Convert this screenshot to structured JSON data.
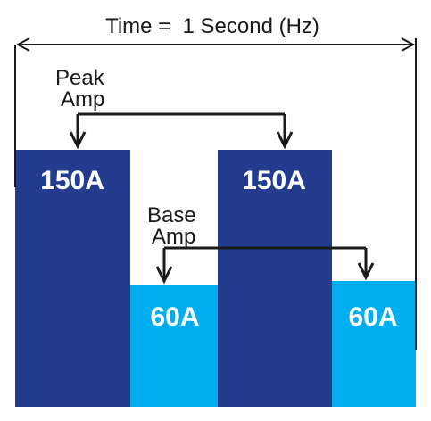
{
  "title": "Time =  1 Second (Hz)",
  "peak_label_line1": "Peak",
  "peak_label_line2": "Amp",
  "base_label_line1": "Base",
  "base_label_line2": "Amp",
  "bars": [
    {
      "label": "150A",
      "level": "peak"
    },
    {
      "label": "60A",
      "level": "base"
    },
    {
      "label": "150A",
      "level": "peak"
    },
    {
      "label": "60A",
      "level": "base"
    }
  ],
  "colors": {
    "peak": "#233c8e",
    "base": "#00aeef",
    "text_on_bar": "#ffffff",
    "lines": "#1a1a1a"
  }
}
